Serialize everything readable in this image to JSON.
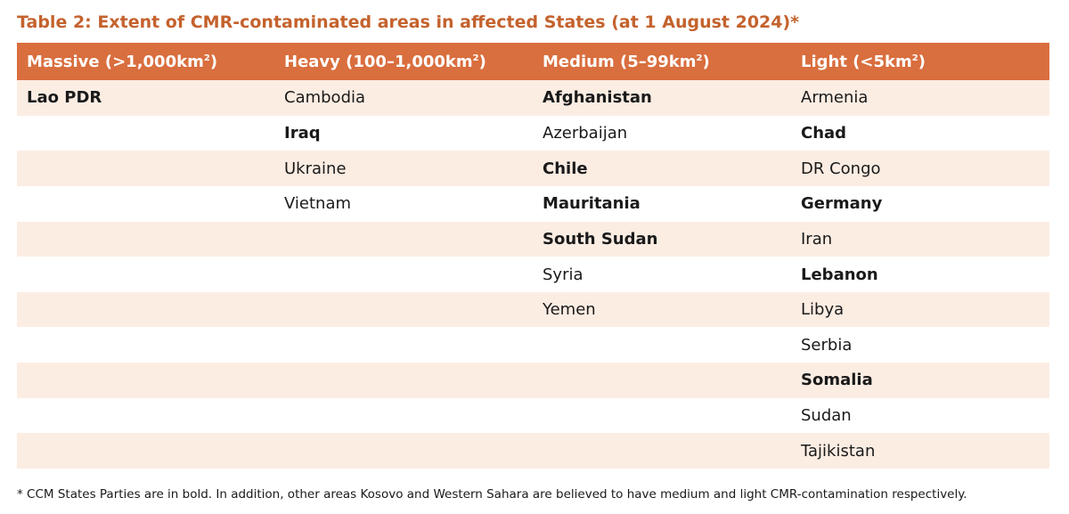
{
  "title": "Table 2: Extent of CMR-contaminated areas in affected States (at 1 August 2024)*",
  "colors": {
    "title": "#c4622d",
    "header_bg": "#d96e3e",
    "row_shade": "#fcede3"
  },
  "headers": [
    {
      "label": "Massive (>1,000km",
      "sup": "2",
      "suffix": ")"
    },
    {
      "label": "Heavy (100–1,000km",
      "sup": "2",
      "suffix": ")"
    },
    {
      "label": "Medium (5–99km",
      "sup": "2",
      "suffix": ")"
    },
    {
      "label": "Light (<5km",
      "sup": "2",
      "suffix": ")"
    }
  ],
  "rows": [
    [
      {
        "text": "Lao PDR",
        "bold": true
      },
      {
        "text": "Cambodia",
        "bold": false
      },
      {
        "text": "Afghanistan",
        "bold": true
      },
      {
        "text": "Armenia",
        "bold": false
      }
    ],
    [
      {
        "text": "",
        "bold": false
      },
      {
        "text": "Iraq",
        "bold": true
      },
      {
        "text": "Azerbaijan",
        "bold": false
      },
      {
        "text": "Chad",
        "bold": true
      }
    ],
    [
      {
        "text": "",
        "bold": false
      },
      {
        "text": "Ukraine",
        "bold": false
      },
      {
        "text": "Chile",
        "bold": true
      },
      {
        "text": "DR Congo",
        "bold": false
      }
    ],
    [
      {
        "text": "",
        "bold": false
      },
      {
        "text": "Vietnam",
        "bold": false
      },
      {
        "text": "Mauritania",
        "bold": true
      },
      {
        "text": "Germany",
        "bold": true
      }
    ],
    [
      {
        "text": "",
        "bold": false
      },
      {
        "text": "",
        "bold": false
      },
      {
        "text": "South Sudan",
        "bold": true
      },
      {
        "text": "Iran",
        "bold": false
      }
    ],
    [
      {
        "text": "",
        "bold": false
      },
      {
        "text": "",
        "bold": false
      },
      {
        "text": "Syria",
        "bold": false
      },
      {
        "text": "Lebanon",
        "bold": true
      }
    ],
    [
      {
        "text": "",
        "bold": false
      },
      {
        "text": "",
        "bold": false
      },
      {
        "text": "Yemen",
        "bold": false
      },
      {
        "text": "Libya",
        "bold": false
      }
    ],
    [
      {
        "text": "",
        "bold": false
      },
      {
        "text": "",
        "bold": false
      },
      {
        "text": "",
        "bold": false
      },
      {
        "text": "Serbia",
        "bold": false
      }
    ],
    [
      {
        "text": "",
        "bold": false
      },
      {
        "text": "",
        "bold": false
      },
      {
        "text": "",
        "bold": false
      },
      {
        "text": "Somalia",
        "bold": true
      }
    ],
    [
      {
        "text": "",
        "bold": false
      },
      {
        "text": "",
        "bold": false
      },
      {
        "text": "",
        "bold": false
      },
      {
        "text": "Sudan",
        "bold": false
      }
    ],
    [
      {
        "text": "",
        "bold": false
      },
      {
        "text": "",
        "bold": false
      },
      {
        "text": "",
        "bold": false
      },
      {
        "text": "Tajikistan",
        "bold": false
      }
    ]
  ],
  "footnote": "* CCM States Parties are in bold. In addition, other areas Kosovo and Western Sahara are believed to have medium and light CMR-contamination respectively."
}
